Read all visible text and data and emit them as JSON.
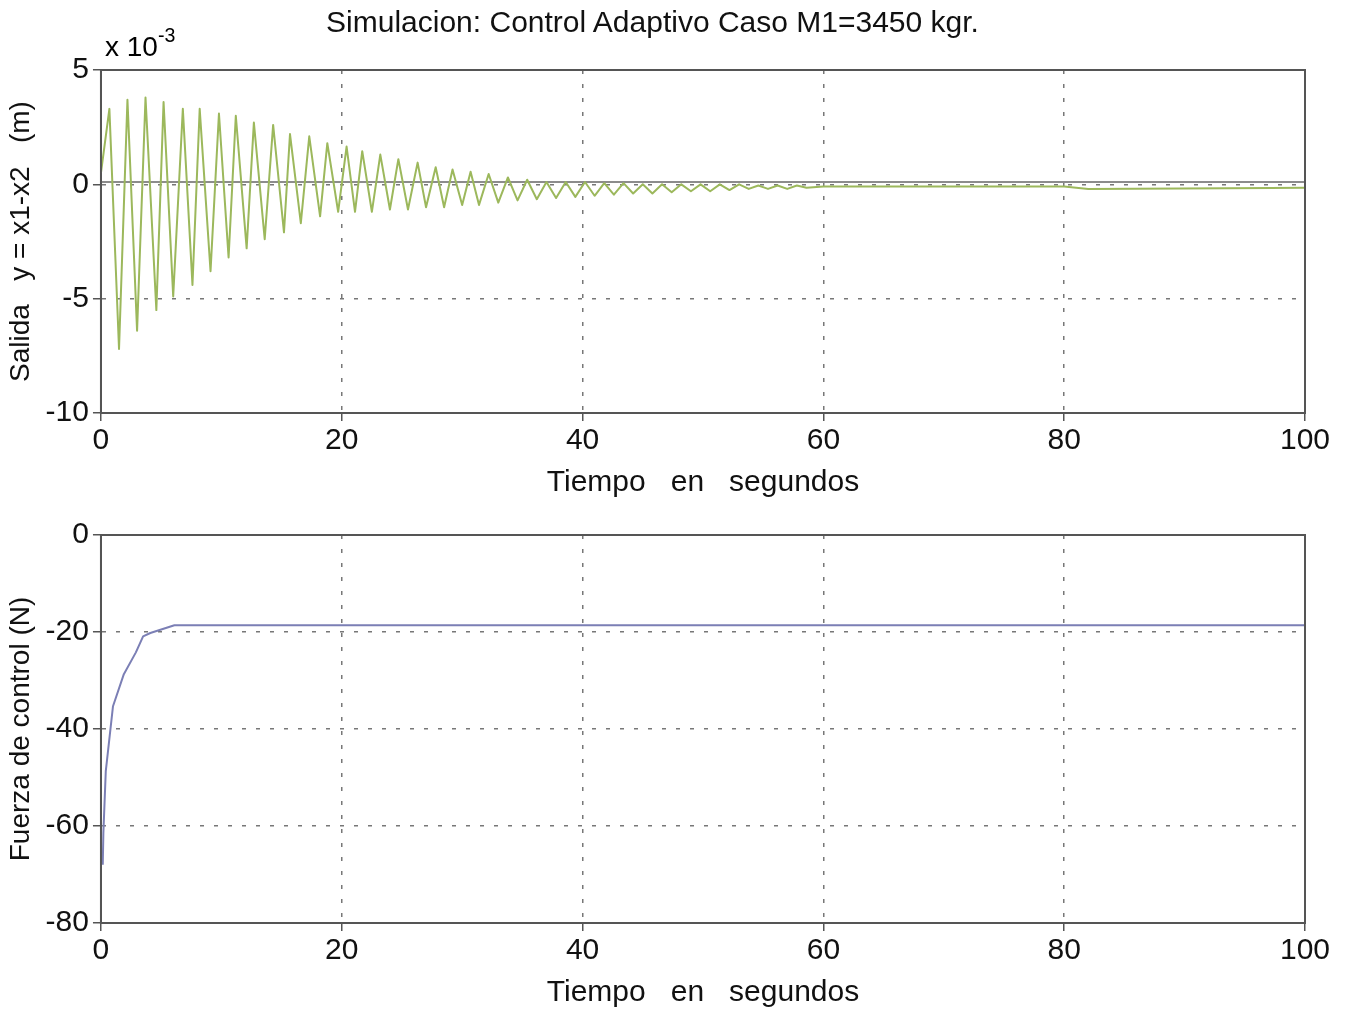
{
  "chart_data": [
    {
      "type": "line",
      "title": "Simulacion: Control Adaptivo Caso M1=3450 kgr.",
      "xlabel": "Tiempo   en   segundos",
      "ylabel": "Salida   y = x1-x2   (m)",
      "annotations": [
        "x 10$^{-3}$"
      ],
      "xlim": [
        0,
        100
      ],
      "xticks": [
        0,
        20,
        40,
        60,
        80,
        100
      ],
      "ylim": [
        -10,
        5
      ],
      "yticks": [
        -10,
        -5,
        0,
        5
      ],
      "grid": true,
      "legend": false,
      "series": [
        {
          "color": "#9cb85c",
          "x": [
            0,
            0.7,
            1.5,
            2.2,
            3.0,
            3.7,
            4.6,
            5.2,
            6.0,
            6.8,
            7.6,
            8.2,
            9.1,
            9.8,
            10.6,
            11.2,
            12.1,
            12.7,
            13.6,
            14.3,
            15.2,
            15.7,
            16.6,
            17.3,
            18.2,
            18.8,
            19.7,
            20.4,
            21.1,
            21.7,
            22.5,
            23.2,
            24.0,
            24.7,
            25.5,
            26.3,
            27.0,
            27.8,
            28.5,
            29.2,
            30.0,
            30.7,
            31.4,
            32.2,
            33.0,
            33.8,
            34.6,
            35.4,
            36.2,
            37.0,
            37.8,
            38.6,
            39.4,
            40.2,
            41.0,
            41.8,
            42.6,
            43.4,
            44.2,
            45.0,
            45.8,
            46.6,
            47.4,
            48.2,
            49.0,
            49.8,
            50.6,
            51.4,
            52.2,
            53.0,
            53.8,
            54.6,
            55.4,
            56.2,
            57.0,
            57.8,
            58.6,
            60,
            80,
            82,
            100
          ],
          "values": [
            0.5,
            3.3,
            -7.2,
            3.7,
            -6.4,
            3.8,
            -5.5,
            3.6,
            -4.9,
            3.3,
            -4.4,
            3.3,
            -3.8,
            3.1,
            -3.2,
            3.0,
            -2.8,
            2.7,
            -2.4,
            2.6,
            -2.1,
            2.2,
            -1.7,
            2.1,
            -1.4,
            1.8,
            -1.2,
            1.65,
            -1.2,
            1.45,
            -1.2,
            1.3,
            -1.1,
            1.1,
            -1.1,
            0.95,
            -1.0,
            0.75,
            -1.0,
            0.65,
            -0.9,
            0.55,
            -0.9,
            0.45,
            -0.8,
            0.3,
            -0.7,
            0.2,
            -0.65,
            0.1,
            -0.6,
            0.1,
            -0.55,
            0.1,
            -0.5,
            0.05,
            -0.45,
            0.05,
            -0.4,
            0,
            -0.4,
            0,
            -0.35,
            0,
            -0.3,
            0,
            -0.3,
            0,
            -0.25,
            0,
            -0.2,
            -0.05,
            -0.2,
            -0.05,
            -0.2,
            -0.05,
            -0.15,
            -0.1,
            -0.1,
            -0.2,
            -0.15
          ]
        },
        {
          "color": "#8c8c8c",
          "x": [
            0,
            100
          ],
          "values": [
            0.1,
            0.1
          ]
        }
      ]
    },
    {
      "type": "line",
      "xlabel": "Tiempo   en   segundos",
      "ylabel": "Fuerza de control (N)",
      "xlim": [
        0,
        100
      ],
      "xticks": [
        0,
        20,
        40,
        60,
        80,
        100
      ],
      "ylim": [
        -80,
        0
      ],
      "yticks": [
        -80,
        -60,
        -40,
        -20,
        0
      ],
      "grid": true,
      "legend": false,
      "series": [
        {
          "color": "#7b7fb5",
          "x": [
            0.15,
            0.2,
            0.4,
            1.0,
            1.9,
            2.9,
            3.5,
            4.1,
            6.1,
            100
          ],
          "values": [
            -68,
            -61.5,
            -48.7,
            -35.3,
            -28.7,
            -24.2,
            -20.9,
            -20.2,
            -18.6,
            -18.6
          ]
        }
      ]
    }
  ]
}
